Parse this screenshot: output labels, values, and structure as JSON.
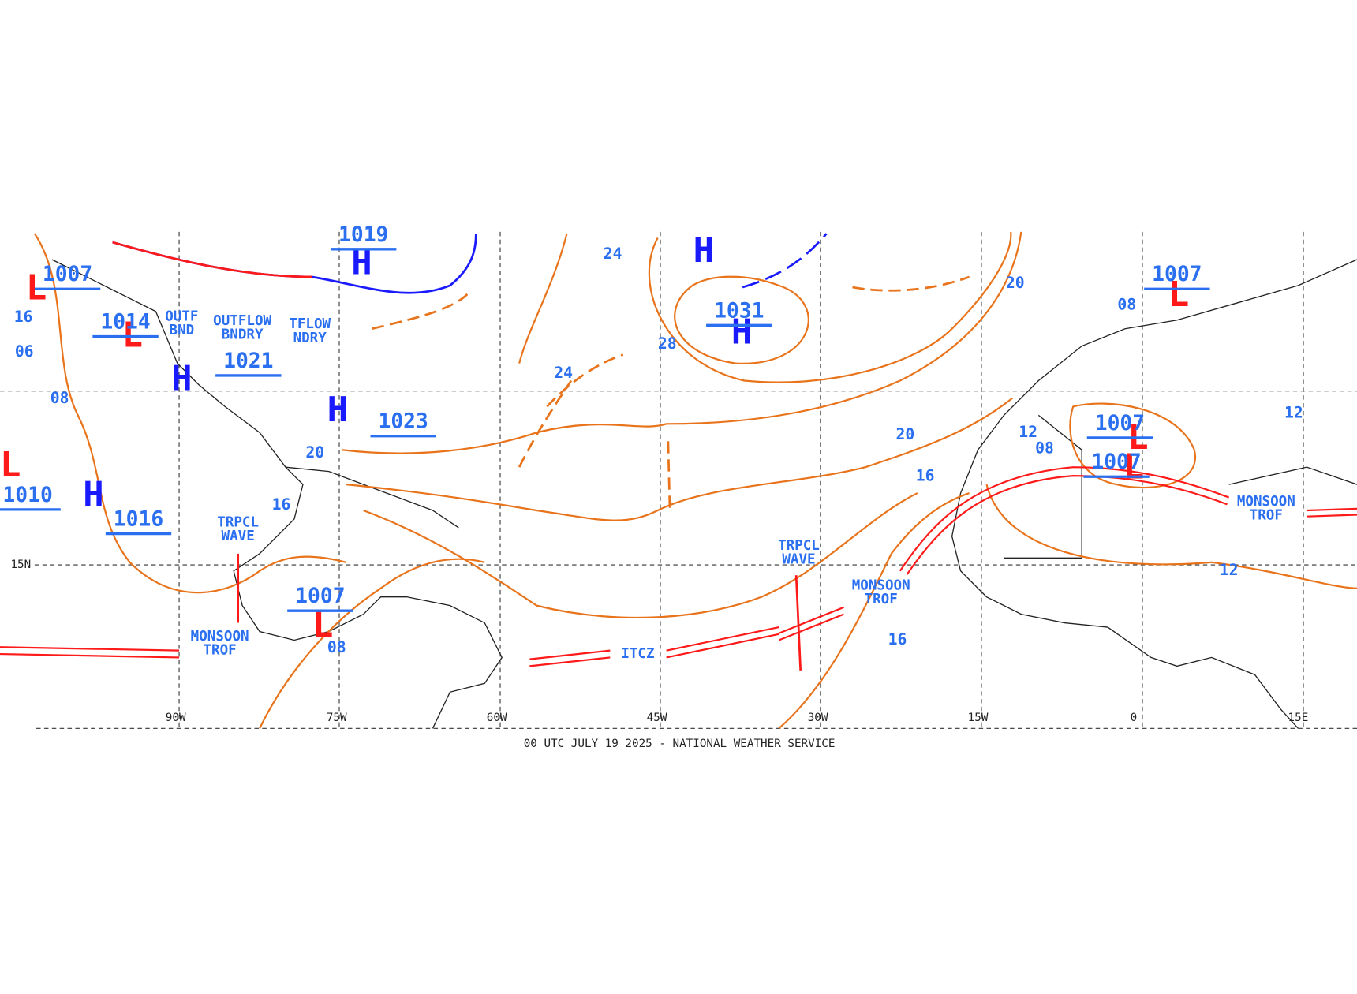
{
  "map": {
    "footer": "00 UTC JULY 19 2025 - NATIONAL WEATHER SERVICE",
    "latitude_labels": [
      "15N"
    ],
    "longitude_labels": [
      "90W",
      "75W",
      "60W",
      "45W",
      "30W",
      "15W",
      "0",
      "15E"
    ],
    "pressure_centers": [
      {
        "symbol": "H"
      },
      {
        "symbol": "H",
        "pressure": "1031"
      },
      {
        "symbol": "H",
        "pressure": "1023"
      },
      {
        "symbol": "H",
        "pressure": "1016"
      },
      {
        "symbol": "H",
        "pressure": "1019"
      },
      {
        "symbol": "H",
        "pressure": "1021"
      },
      {
        "symbol": "L",
        "pressure": "1007"
      },
      {
        "symbol": "L",
        "pressure": "1007"
      },
      {
        "symbol": "L",
        "pressure": "1007"
      },
      {
        "symbol": "L",
        "pressure": "1007"
      },
      {
        "symbol": "L",
        "pressure": "1014"
      },
      {
        "symbol": "L",
        "pressure": "1010"
      },
      {
        "symbol": "L",
        "pressure": "1007"
      }
    ],
    "isobar_labels": [
      "24",
      "24",
      "28",
      "20",
      "20",
      "20",
      "16",
      "16",
      "16",
      "16",
      "12",
      "12",
      "12",
      "08",
      "08",
      "08",
      "08",
      "06"
    ],
    "features": [
      {
        "lines": [
          "TRPCL",
          "WAVE"
        ]
      },
      {
        "lines": [
          "TRPCL",
          "WAVE"
        ]
      },
      {
        "lines": [
          "MONSOON",
          "TROF"
        ]
      },
      {
        "lines": [
          "MONSOON",
          "TROF"
        ]
      },
      {
        "lines": [
          "MONSOON",
          "TROF"
        ]
      },
      {
        "lines": [
          "ITCZ"
        ]
      },
      {
        "lines": [
          "OUTFLOW",
          "BNDRY"
        ]
      },
      {
        "lines": [
          "OUTF",
          "BND"
        ]
      },
      {
        "lines": [
          "TFLOW",
          "NDRY"
        ]
      }
    ]
  }
}
